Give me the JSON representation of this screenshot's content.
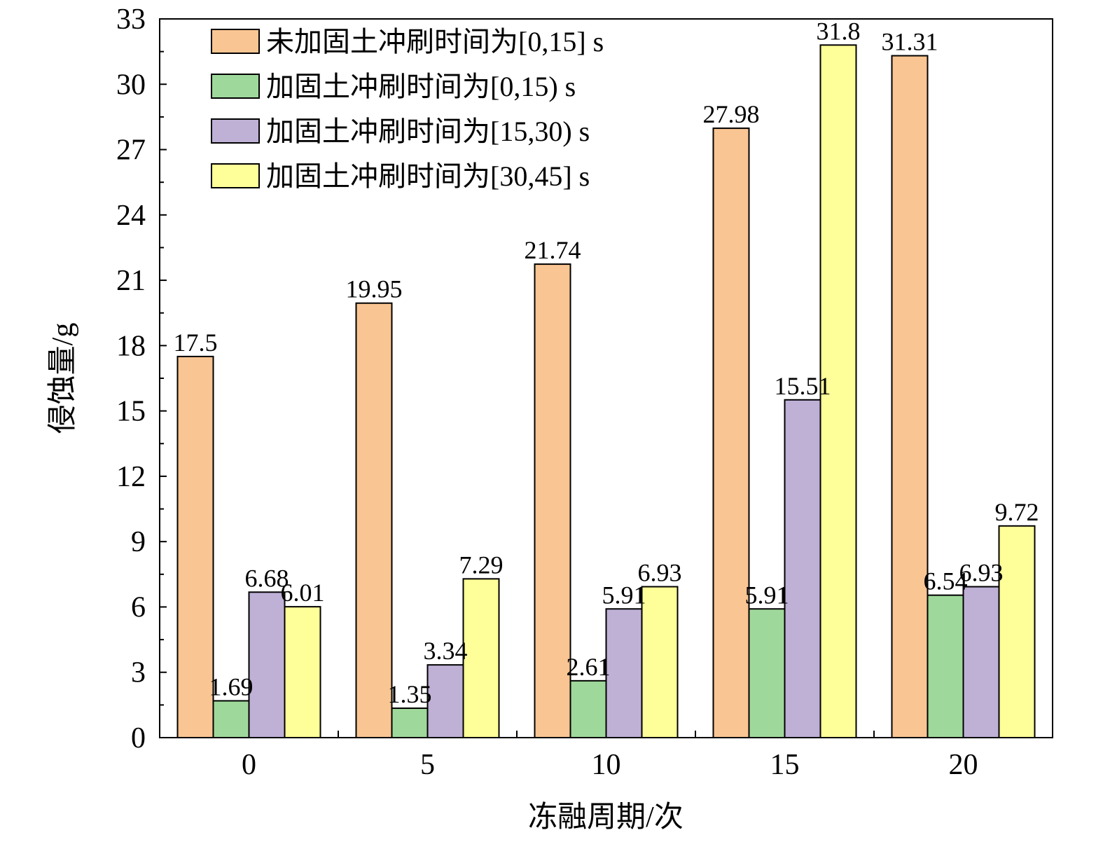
{
  "chart_data": {
    "type": "bar",
    "xlabel": "冻融周期/次",
    "ylabel": "侵蚀量/g",
    "ylim": [
      0,
      33
    ],
    "yticks": [
      0,
      3,
      6,
      9,
      12,
      15,
      18,
      21,
      24,
      27,
      30,
      33
    ],
    "categories": [
      "0",
      "5",
      "10",
      "15",
      "20"
    ],
    "legend_position": "top-left",
    "series": [
      {
        "name": "未加固土冲刷时间为[0,15] s",
        "color": "#f9c592",
        "values": [
          17.5,
          19.95,
          21.74,
          27.98,
          31.31
        ]
      },
      {
        "name": "加固土冲刷时间为[0,15) s",
        "color": "#9fd89b",
        "values": [
          1.69,
          1.35,
          2.61,
          5.91,
          6.54
        ]
      },
      {
        "name": "加固土冲刷时间为[15,30) s",
        "color": "#bfb0d6",
        "values": [
          6.68,
          3.34,
          5.91,
          15.51,
          6.93
        ]
      },
      {
        "name": "加固土冲刷时间为[30,45] s",
        "color": "#ffff99",
        "values": [
          6.01,
          7.29,
          6.93,
          31.8,
          9.72
        ]
      }
    ],
    "data_labels": [
      [
        "17.5",
        "19.95",
        "21.74",
        "27.98",
        "31.31"
      ],
      [
        "1.69",
        "1.35",
        "2.61",
        "5.91",
        "6.54"
      ],
      [
        "6.68",
        "3.34",
        "5.91",
        "15.51",
        "6.93"
      ],
      [
        "6.01",
        "7.29",
        "6.93",
        "31.8",
        "9.72"
      ]
    ]
  }
}
